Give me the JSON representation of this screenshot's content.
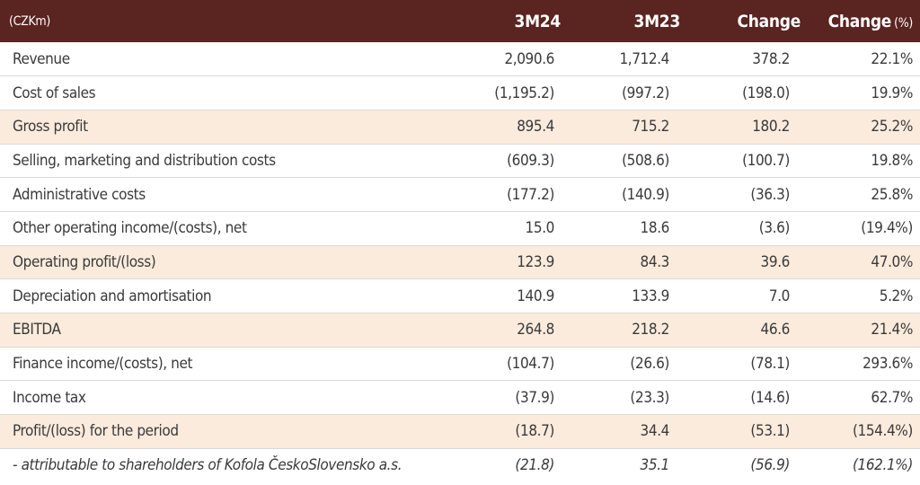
{
  "header": {
    "unit": "(CZKm)",
    "col1": "3M24",
    "col2": "3M23",
    "col3": "Change",
    "col4": "Change",
    "col4_suffix": "(%)"
  },
  "rows": [
    {
      "label": "Revenue",
      "v1": "2,090.6",
      "v2": "1,712.4",
      "v3": "378.2",
      "v4": "22.1%",
      "highlight": false,
      "italic": false
    },
    {
      "label": "Cost of sales",
      "v1": "(1,195.2)",
      "v2": "(997.2)",
      "v3": "(198.0)",
      "v4": "19.9%",
      "highlight": false,
      "italic": false
    },
    {
      "label": "Gross profit",
      "v1": "895.4",
      "v2": "715.2",
      "v3": "180.2",
      "v4": "25.2%",
      "highlight": true,
      "italic": false
    },
    {
      "label": "Selling, marketing and distribution costs",
      "v1": "(609.3)",
      "v2": "(508.6)",
      "v3": "(100.7)",
      "v4": "19.8%",
      "highlight": false,
      "italic": false
    },
    {
      "label": "Administrative costs",
      "v1": "(177.2)",
      "v2": "(140.9)",
      "v3": "(36.3)",
      "v4": "25.8%",
      "highlight": false,
      "italic": false
    },
    {
      "label": "Other operating income/(costs), net",
      "v1": "15.0",
      "v2": "18.6",
      "v3": "(3.6)",
      "v4": "(19.4%)",
      "highlight": false,
      "italic": false
    },
    {
      "label": "Operating profit/(loss)",
      "v1": "123.9",
      "v2": "84.3",
      "v3": "39.6",
      "v4": "47.0%",
      "highlight": true,
      "italic": false
    },
    {
      "label": "Depreciation and amortisation",
      "v1": "140.9",
      "v2": "133.9",
      "v3": "7.0",
      "v4": "5.2%",
      "highlight": false,
      "italic": false
    },
    {
      "label": "EBITDA",
      "v1": "264.8",
      "v2": "218.2",
      "v3": "46.6",
      "v4": "21.4%",
      "highlight": true,
      "italic": false
    },
    {
      "label": "Finance income/(costs), net",
      "v1": "(104.7)",
      "v2": "(26.6)",
      "v3": "(78.1)",
      "v4": "293.6%",
      "highlight": false,
      "italic": false
    },
    {
      "label": "Income tax",
      "v1": "(37.9)",
      "v2": "(23.3)",
      "v3": "(14.6)",
      "v4": "62.7%",
      "highlight": false,
      "italic": false
    },
    {
      "label": "Profit/(loss) for the period",
      "v1": "(18.7)",
      "v2": "34.4",
      "v3": "(53.1)",
      "v4": "(154.4%)",
      "highlight": true,
      "italic": false
    },
    {
      "label": "- attributable to shareholders of Kofola ČeskoSlovensko a.s.",
      "v1": "(21.8)",
      "v2": "35.1",
      "v3": "(56.9)",
      "v4": "(162.1%)",
      "highlight": false,
      "italic": true
    }
  ]
}
